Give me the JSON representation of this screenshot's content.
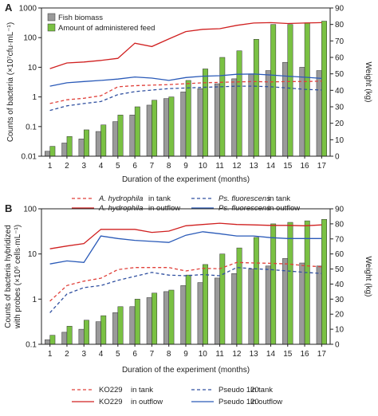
{
  "chart_data": [
    {
      "panel": "A",
      "type": "bar",
      "xlabel": "Duration of the experiment (months)",
      "ylabel_left": "Counts of bacteria (×10⁷cfu·mL⁻¹)",
      "ylabel_right": "Weight (kg)",
      "left_axis": {
        "scale": "log",
        "ylim": [
          0.01,
          1000
        ],
        "ticks": [
          0.01,
          0.1,
          1,
          10,
          100,
          1000
        ],
        "tick_labels": [
          "0.01",
          "0.1",
          "1",
          "10",
          "100",
          "1000"
        ]
      },
      "right_axis": {
        "scale": "linear",
        "ylim": [
          0,
          90
        ],
        "ticks": [
          0,
          10,
          20,
          30,
          40,
          50,
          60,
          70,
          80,
          90
        ],
        "tick_labels": [
          "0",
          "10",
          "20",
          "30",
          "40",
          "50",
          "60",
          "70",
          "80",
          "90"
        ]
      },
      "categories": [
        "1",
        "2",
        "3",
        "4",
        "5",
        "6",
        "7",
        "8",
        "9",
        "10",
        "11",
        "12",
        "13",
        "14",
        "15",
        "16",
        "17"
      ],
      "bar_series": [
        {
          "name": "Fish biomass",
          "color": "#9a9a9a",
          "axis": "right",
          "values": [
            3,
            8,
            10.5,
            15,
            21,
            25,
            31,
            35,
            39,
            41,
            44,
            47,
            50,
            52,
            57,
            54,
            52
          ]
        },
        {
          "name": "Amount of administered feed",
          "color": "#7ac143",
          "axis": "right",
          "values": [
            6,
            12,
            16,
            19,
            25,
            30,
            34,
            36,
            46,
            53,
            60,
            64,
            71,
            80,
            80,
            81,
            82
          ]
        }
      ],
      "line_series": [
        {
          "name": "A. hydrophila in tank",
          "color": "#e0403a",
          "dash": true,
          "axis": "left",
          "values": [
            0.6,
            0.8,
            0.9,
            1.1,
            2.2,
            2.4,
            2.5,
            2.6,
            2.8,
            3.0,
            3.1,
            3.2,
            3.3,
            3.2,
            3.3,
            3.3,
            3.4
          ]
        },
        {
          "name": "A. hydrophila in outflow",
          "color": "#d02020",
          "dash": false,
          "axis": "left",
          "values": [
            9,
            14,
            15,
            17,
            20,
            65,
            50,
            90,
            160,
            190,
            200,
            260,
            310,
            320,
            300,
            310,
            320
          ]
        },
        {
          "name": "Ps. fluorescens in tank",
          "color": "#3050a0",
          "dash": true,
          "axis": "left",
          "values": [
            0.35,
            0.5,
            0.6,
            0.7,
            1.2,
            1.5,
            1.7,
            1.9,
            2.0,
            2.1,
            2.2,
            2.3,
            2.3,
            2.2,
            2.0,
            1.8,
            1.7
          ]
        },
        {
          "name": "Ps. fluorescens in outflow",
          "color": "#2a5ab8",
          "dash": false,
          "axis": "left",
          "values": [
            2.3,
            3.0,
            3.3,
            3.6,
            4.0,
            4.7,
            4.3,
            3.6,
            4.5,
            5.0,
            5.2,
            5.8,
            5.9,
            5.5,
            5.0,
            4.6,
            4.2
          ]
        }
      ],
      "legend_top": [
        "Fish biomass",
        "Amount of administered feed"
      ],
      "legend_bottom": [
        {
          "species": "A. hydrophila",
          "place": "in tank"
        },
        {
          "species": "Ps. fluorescens",
          "place": "in tank"
        },
        {
          "species": "A. hydrophila",
          "place": "in outflow"
        },
        {
          "species": "Ps. fluorescens",
          "place": "in outflow"
        }
      ]
    },
    {
      "panel": "B",
      "type": "bar",
      "xlabel": "Duration of the experiment (months)",
      "ylabel_left_line1": "Counts of bacteria hybridized",
      "ylabel_left_line2": "with probes (×10⁶ cells·mL⁻¹)",
      "ylabel_right": "Weight (kg)",
      "left_axis": {
        "scale": "log",
        "ylim": [
          0.1,
          100
        ],
        "ticks": [
          0.1,
          1,
          10,
          100
        ],
        "tick_labels": [
          "0.1",
          "1",
          "10",
          "100"
        ]
      },
      "right_axis": {
        "scale": "linear",
        "ylim": [
          0,
          90
        ],
        "ticks": [
          0,
          10,
          20,
          30,
          40,
          50,
          60,
          70,
          80,
          90
        ],
        "tick_labels": [
          "0",
          "10",
          "20",
          "30",
          "40",
          "50",
          "60",
          "70",
          "80",
          "90"
        ]
      },
      "categories": [
        "1",
        "2",
        "3",
        "4",
        "5",
        "6",
        "7",
        "8",
        "9",
        "10",
        "11",
        "12",
        "13",
        "14",
        "15",
        "16",
        "17"
      ],
      "bar_series": [
        {
          "name": "Fish biomass",
          "color": "#9a9a9a",
          "axis": "right",
          "values": [
            3,
            8,
            10,
            15,
            21,
            25,
            31,
            35,
            39,
            41,
            44,
            47,
            50,
            52,
            57,
            54,
            52
          ]
        },
        {
          "name": "Amount of administered feed",
          "color": "#7ac143",
          "axis": "right",
          "values": [
            6,
            12,
            16,
            19,
            25,
            30,
            34,
            36,
            46,
            53,
            60,
            64,
            71,
            80,
            81,
            82,
            83
          ]
        }
      ],
      "line_series": [
        {
          "name": "KO229 in tank",
          "color": "#e0403a",
          "dash": true,
          "axis": "left",
          "values": [
            0.9,
            2.0,
            2.5,
            2.9,
            4.5,
            5.0,
            5.0,
            5.0,
            4.2,
            4.8,
            4.7,
            6.5,
            6.3,
            6.2,
            6.0,
            5.5,
            5.2
          ]
        },
        {
          "name": "KO229 in outflow",
          "color": "#d02020",
          "dash": false,
          "axis": "left",
          "values": [
            13,
            15,
            17,
            35,
            35,
            35,
            30,
            32,
            42,
            45,
            48,
            45,
            44,
            43,
            43,
            42,
            44
          ]
        },
        {
          "name": "Pseudo 120 in tank",
          "color": "#3050a0",
          "dash": true,
          "axis": "left",
          "values": [
            0.5,
            1.3,
            1.8,
            2.0,
            2.6,
            3.2,
            3.9,
            3.4,
            3.3,
            3.5,
            3.3,
            5.0,
            4.7,
            4.5,
            4.2,
            3.9,
            3.7
          ]
        },
        {
          "name": "Pseudo 120 in outflow",
          "color": "#2a5ab8",
          "dash": false,
          "axis": "left",
          "values": [
            6,
            7,
            6.5,
            25,
            22,
            20,
            19,
            18,
            26,
            31,
            28,
            25,
            25,
            23,
            22,
            22,
            22
          ]
        }
      ],
      "legend_bottom": [
        {
          "species": "KO229",
          "place": "in tank"
        },
        {
          "species": "Pseudo 120",
          "place": "in tank"
        },
        {
          "species": "KO229",
          "place": "in outflow"
        },
        {
          "species": "Pseudo 120",
          "place": "in outflow"
        }
      ]
    }
  ]
}
